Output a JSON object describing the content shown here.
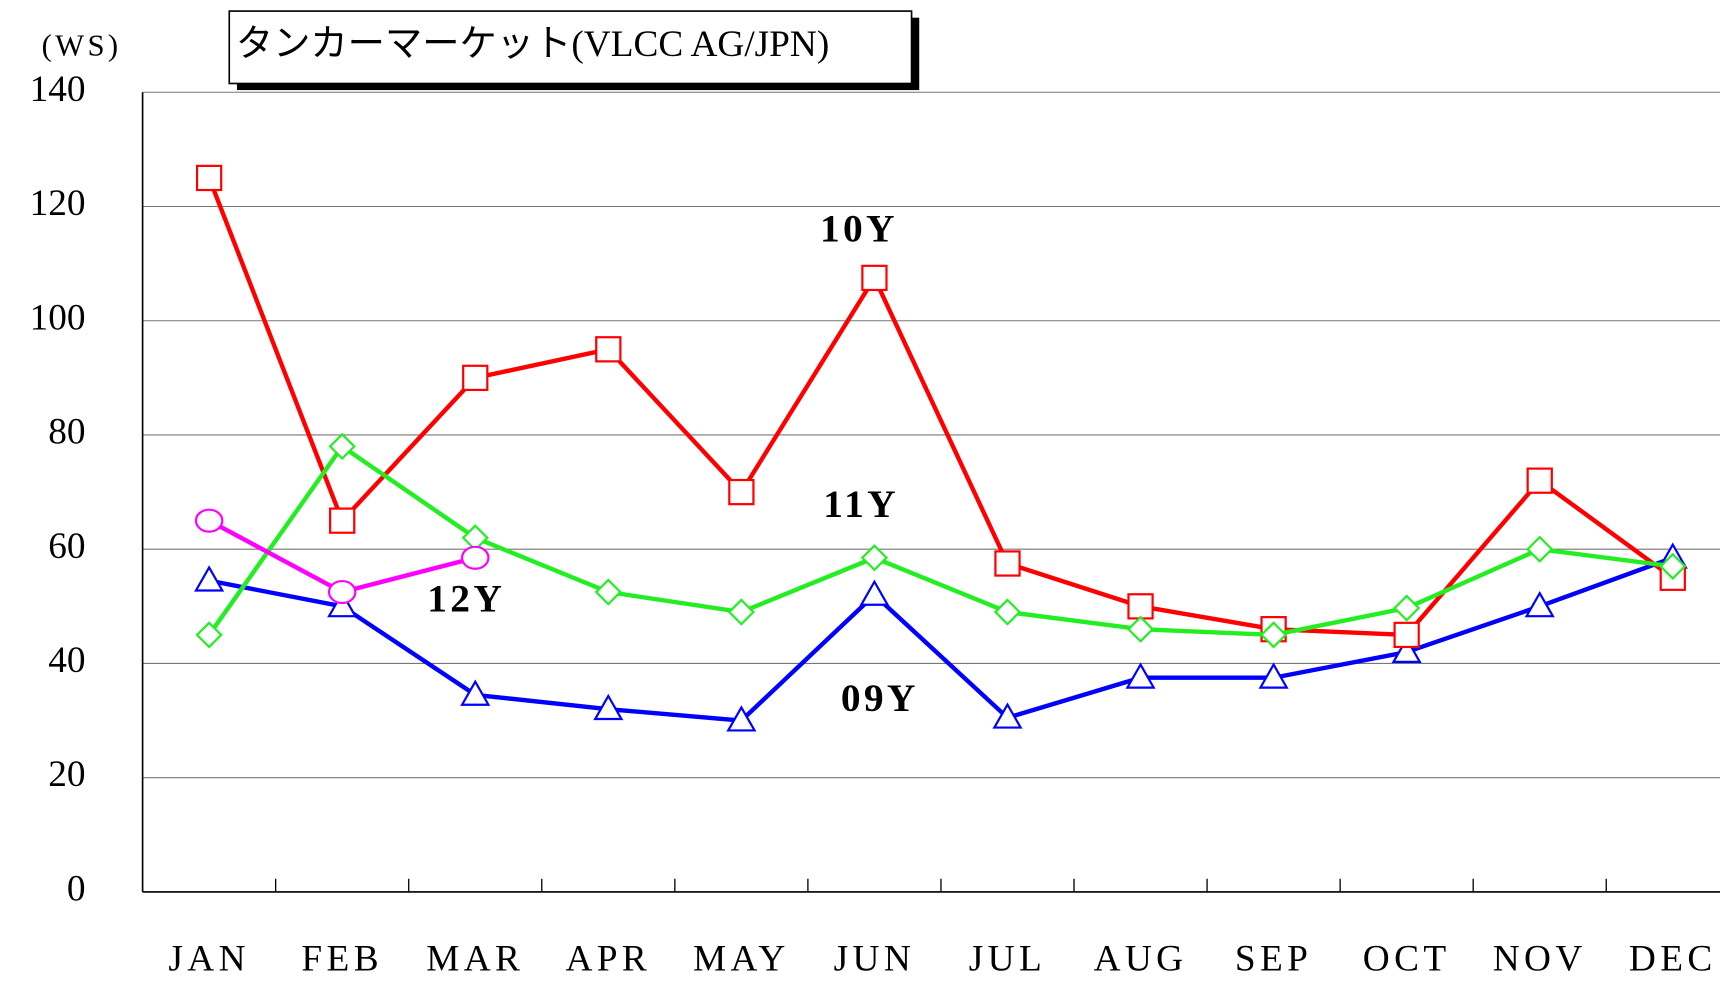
{
  "chart_data": {
    "type": "line",
    "title": "タンカーマーケット(VLCC AG/JPN)",
    "y_label": "(WS)",
    "categories": [
      "JAN",
      "FEB",
      "MAR",
      "APR",
      "MAY",
      "JUN",
      "JUL",
      "AUG",
      "SEP",
      "OCT",
      "NOV",
      "DEC"
    ],
    "series": [
      {
        "name": "09Y",
        "color": "#0000ff",
        "marker": "triangle",
        "values": [
          54.5,
          50,
          34.5,
          32,
          30,
          52,
          30.5,
          37.5,
          37.5,
          42,
          50,
          58.5
        ]
      },
      {
        "name": "10Y",
        "color": "#ff0000",
        "marker": "square",
        "values": [
          125,
          65,
          90,
          95,
          70,
          107.5,
          57.5,
          50,
          46,
          45,
          72,
          55
        ]
      },
      {
        "name": "11Y",
        "color": "#22ee22",
        "marker": "diamond",
        "values": [
          45,
          78,
          62,
          52.5,
          49,
          58.5,
          49,
          46,
          45,
          49.7,
          60,
          57
        ]
      },
      {
        "name": "12Y",
        "color": "#ff00ff",
        "marker": "circle",
        "values": [
          65,
          52.5,
          58.5,
          null,
          null,
          null,
          null,
          null,
          null,
          null,
          null,
          null
        ]
      }
    ],
    "ylim": [
      0,
      140
    ],
    "yticks": [
      0,
      20,
      40,
      60,
      80,
      100,
      120,
      140
    ],
    "grid": true
  }
}
